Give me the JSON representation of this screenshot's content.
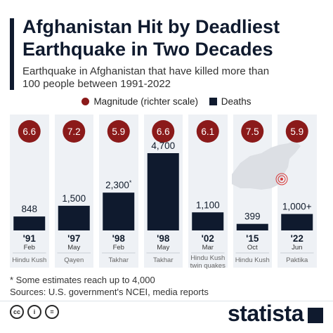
{
  "title_line1": "Afghanistan Hit by Deadliest",
  "title_line2": "Earthquake in Two Decades",
  "subtitle_line1": "Earthquake in Afghanistan that have killed more than",
  "subtitle_line2": "100 people between 1991-2022",
  "legend": {
    "magnitude": "Magnitude (richter scale)",
    "deaths": "Deaths"
  },
  "colors": {
    "magnitude": "#8b1a1a",
    "deaths": "#0f1a2e",
    "column_bg": "#eef1f5",
    "epicenter": "#d73a3a"
  },
  "chart_data": {
    "type": "bar",
    "title": "Afghanistan Hit by Deadliest Earthquake in Two Decades",
    "subtitle": "Earthquake in Afghanistan that have killed more than 100 people between 1991-2022",
    "series": [
      {
        "name": "Deaths",
        "values": [
          848,
          1500,
          2300,
          4700,
          1100,
          399,
          1000
        ]
      },
      {
        "name": "Magnitude (richter scale)",
        "values": [
          6.6,
          7.2,
          5.9,
          6.6,
          6.1,
          7.5,
          5.9
        ]
      }
    ],
    "bars": [
      {
        "year": "'91",
        "month": "Feb",
        "location": [
          "Hindu Kush"
        ],
        "deaths": 848,
        "deaths_label": "848",
        "magnitude": "6.6"
      },
      {
        "year": "'97",
        "month": "May",
        "location": [
          "Qayen"
        ],
        "deaths": 1500,
        "deaths_label": "1,500",
        "magnitude": "7.2"
      },
      {
        "year": "'98",
        "month": "Feb",
        "location": [
          "Takhar"
        ],
        "deaths": 2300,
        "deaths_label": "2,300",
        "deaths_note": "*",
        "magnitude": "5.9"
      },
      {
        "year": "'98",
        "month": "May",
        "location": [
          "Takhar"
        ],
        "deaths": 4700,
        "deaths_label": "4,700",
        "magnitude": "6.6"
      },
      {
        "year": "'02",
        "month": "Mar",
        "location": [
          "Hindu Kush",
          "twin quakes"
        ],
        "deaths": 1100,
        "deaths_label": "1,100",
        "magnitude": "6.1"
      },
      {
        "year": "'15",
        "month": "Oct",
        "location": [
          "Hindu Kush"
        ],
        "deaths": 399,
        "deaths_label": "399",
        "magnitude": "7.5"
      },
      {
        "year": "'22",
        "month": "Jun",
        "location": [
          "Paktika"
        ],
        "deaths": 1000,
        "deaths_label": "1,000+",
        "magnitude": "5.9"
      }
    ],
    "ylim": [
      0,
      4700
    ],
    "legend_position": "top-center"
  },
  "footnote": "* Some estimates reach up to 4,000",
  "sources": "Sources: U.S. government's NCEI, media reports",
  "brand": "statista"
}
